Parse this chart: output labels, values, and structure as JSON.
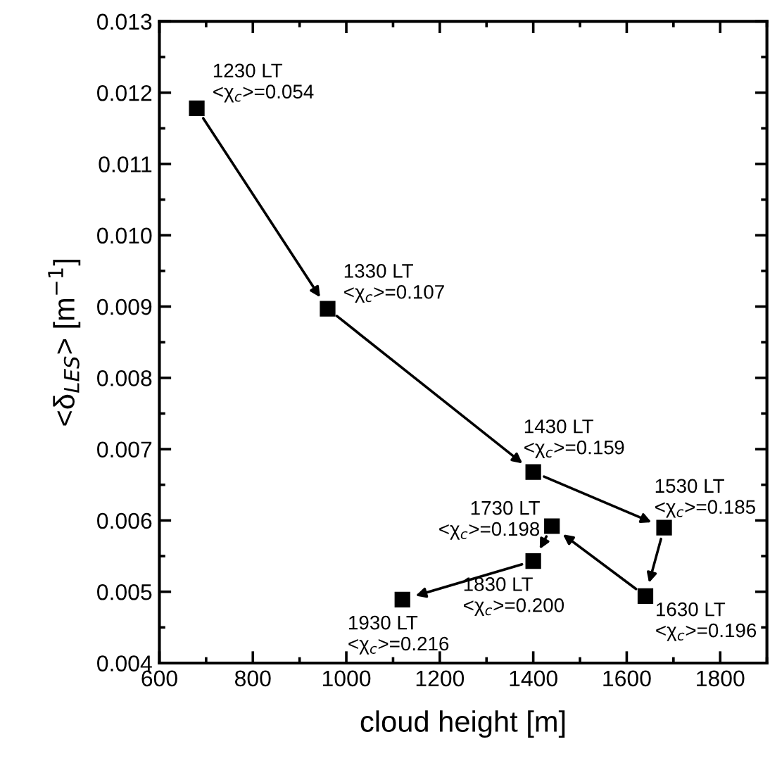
{
  "chart_data": {
    "type": "scatter",
    "xlabel": "cloud height [m]",
    "ylabel": "<δ$_{LES}$> [m$^{−1}$]",
    "x": [
      680,
      960,
      1400,
      1680,
      1640,
      1440,
      1400,
      1120
    ],
    "series": [
      {
        "color": "#000000",
        "values": [
          0.01178,
          0.00897,
          0.00668,
          0.0059,
          0.00494,
          0.00592,
          0.00543,
          0.00489
        ]
      }
    ],
    "marker": "square",
    "xlim": [
      600,
      1900
    ],
    "xticks": [
      600,
      800,
      1000,
      1200,
      1400,
      1600,
      1800
    ],
    "ylim": [
      0.004,
      0.013
    ],
    "yticks": [
      0.004,
      0.005,
      0.006,
      0.007,
      0.008,
      0.009,
      {
        "value": 0.01,
        "label": "0.010"
      },
      0.011,
      0.012,
      0.013
    ],
    "grid": false,
    "legend": false,
    "annotations": [
      {
        "text": "1230 LT\n<χ$_{c}$>=0.054",
        "x": 680,
        "y": 0.01178
      },
      {
        "text": "1330 LT\n<χ$_{c}$>=0.107",
        "x": 960,
        "y": 0.00897
      },
      {
        "text": "1430 LT\n<χ$_{c}$>=0.159",
        "x": 1400,
        "y": 0.00668
      },
      {
        "text": "1530 LT\n<χ$_{c}$>=0.185",
        "x": 1680,
        "y": 0.0059
      },
      {
        "text": "1630 LT\n<χ$_{c}$>=0.196",
        "x": 1640,
        "y": 0.00494
      },
      {
        "text": "1730 LT\n<χ$_{c}$>=0.198",
        "x": 1440,
        "y": 0.00592
      },
      {
        "text": "1830 LT\n<χ$_{c}$>=0.200",
        "x": 1400,
        "y": 0.00543
      },
      {
        "text": "1930 LT\n<χ$_{c}$>=0.216",
        "x": 1120,
        "y": 0.00489
      }
    ]
  }
}
